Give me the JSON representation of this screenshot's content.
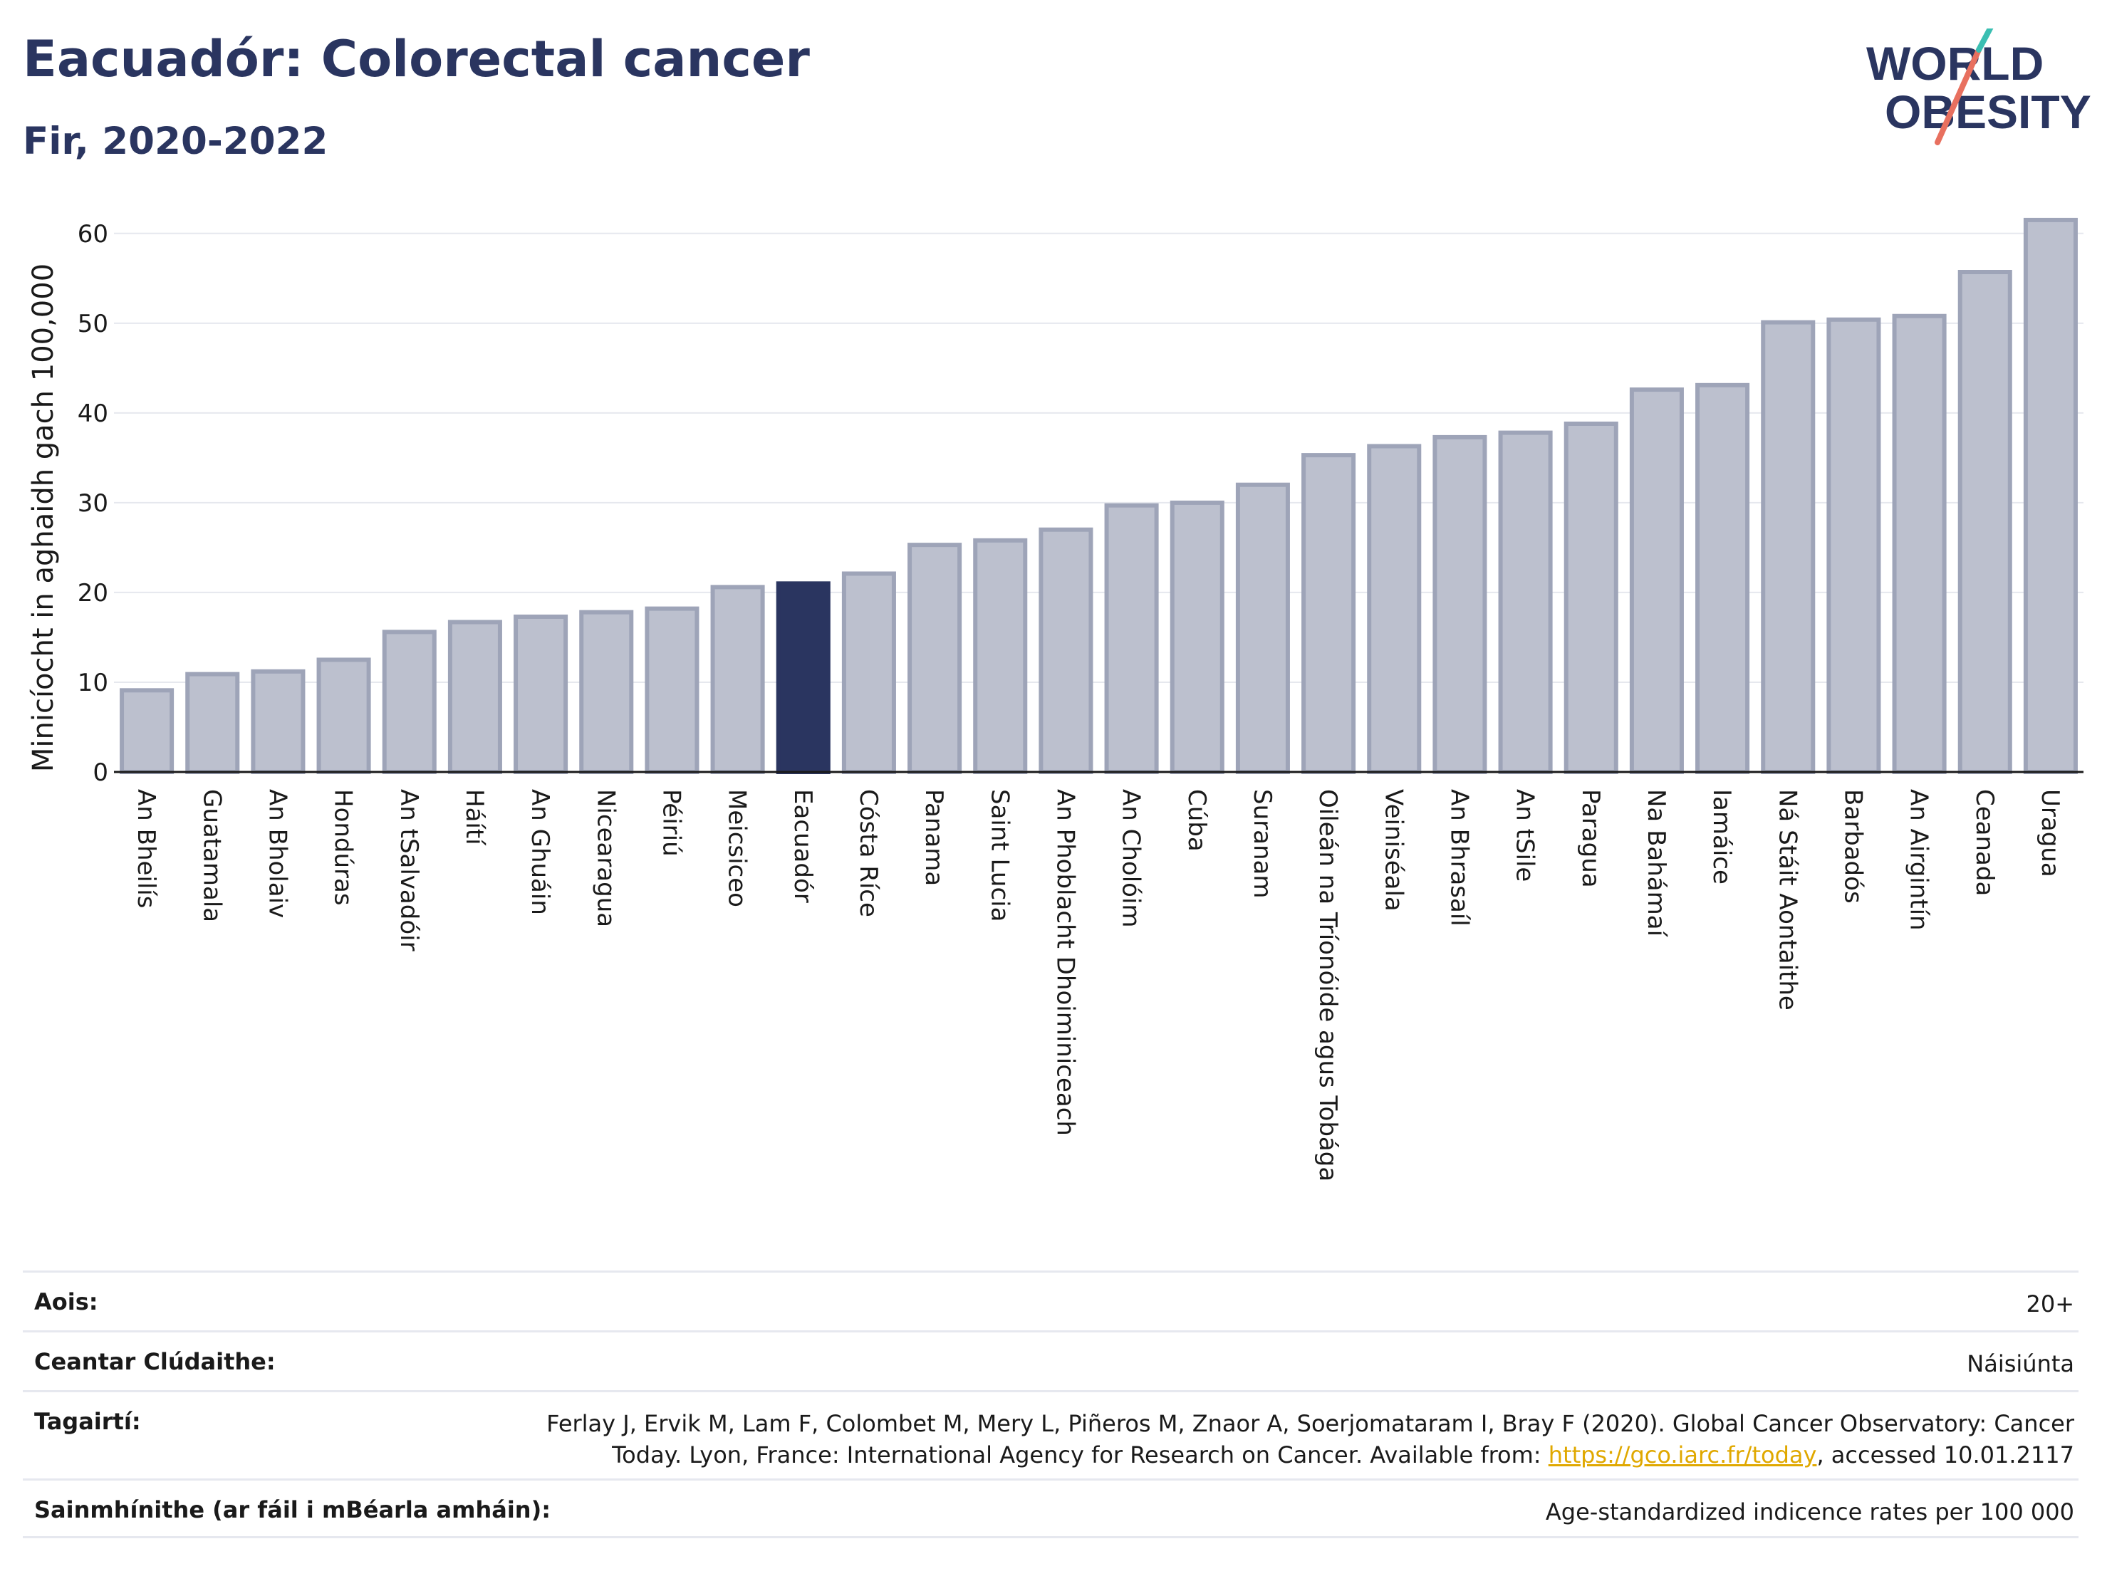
{
  "header": {
    "title": "Eacuadór: Colorectal cancer",
    "subtitle": "Fir, 2020-2022",
    "logo_text_1": "WORLD",
    "logo_text_2": "OBESITY"
  },
  "colors": {
    "title": "#2a3560",
    "bar_default": "#bcc0ce",
    "bar_default_stroke": "#9ea4b8",
    "bar_highlight": "#2a3560",
    "logo_teal": "#3bbfb2",
    "logo_coral": "#e8705f",
    "link": "#e0a800"
  },
  "chart_data": {
    "type": "bar",
    "ylabel": "Minicíocht in aghaidh gach 100,000",
    "ylim": [
      0,
      63
    ],
    "yticks": [
      0,
      10,
      20,
      30,
      40,
      50,
      60
    ],
    "grid": true,
    "highlight": "Eacuadór",
    "categories": [
      "An Bheilís",
      "Guatamala",
      "An Bholaiv",
      "Hondúras",
      "An tSalvadóir",
      "Háítí",
      "An Ghuáin",
      "Nicearagua",
      "Péiriú",
      "Meicsiceo",
      "Eacuadór",
      "Cósta Ríce",
      "Panama",
      "Saint Lucia",
      "An Phoblacht Dhoiminiceach",
      "An Cholóim",
      "Cúba",
      "Suranam",
      "Oileán na Tríonóide agus Tobága",
      "Veiniséala",
      "An Bhrasaíl",
      "An tSile",
      "Paragua",
      "Na Bahámaí",
      "Iamáice",
      "Ná Stáit Aontaithe",
      "Barbadós",
      "An Airgintín",
      "Ceanada",
      "Uragua"
    ],
    "values": [
      9.1,
      10.9,
      11.2,
      12.5,
      15.6,
      16.7,
      17.3,
      17.8,
      18.2,
      20.6,
      21.0,
      22.1,
      25.3,
      25.8,
      27.0,
      29.7,
      30.0,
      32.0,
      35.3,
      36.3,
      37.3,
      37.8,
      38.8,
      42.6,
      43.1,
      50.1,
      50.4,
      50.8,
      55.7,
      61.5
    ]
  },
  "info": {
    "rows": [
      {
        "label": "Aois:",
        "value": "20+"
      },
      {
        "label": "Ceantar Clúdaithe:",
        "value": "Náisiúnta"
      },
      {
        "label": "Tagairtí:",
        "value_line1": "Ferlay J, Ervik M, Lam F, Colombet M, Mery L, Piñeros M, Znaor A, Soerjomataram I, Bray F (2020). Global Cancer Observatory: Cancer",
        "value_line2_pre": "Today. Lyon, France: International Agency for Research on Cancer. Available from: ",
        "link": "https://gco.iarc.fr/today",
        "value_line2_post": ", accessed 10.01.2117"
      },
      {
        "label": "Sainmhínithe (ar fáil i mBéarla amháin):",
        "value": "Age-standardized indicence rates per 100 000"
      }
    ]
  }
}
